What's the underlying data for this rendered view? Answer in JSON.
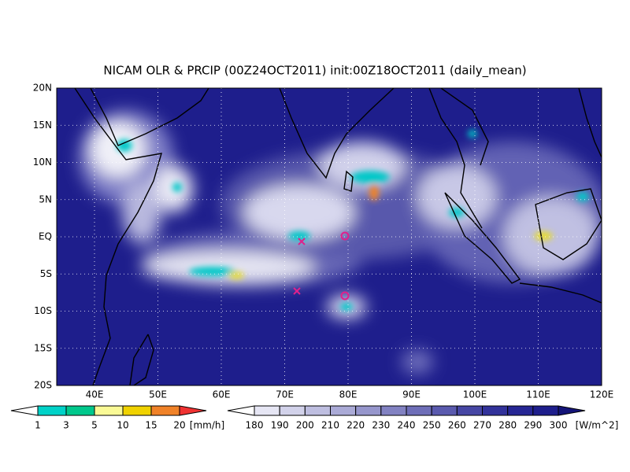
{
  "title": "NICAM OLR & PRCIP (00Z24OCT2011) init:00Z18OCT2011 (daily_mean)",
  "map": {
    "lat_labels": [
      "20N",
      "15N",
      "10N",
      "5N",
      "EQ",
      "5S",
      "10S",
      "15S",
      "20S"
    ],
    "lon_labels": [
      "40E",
      "50E",
      "60E",
      "70E",
      "80E",
      "90E",
      "100E",
      "110E",
      "120E"
    ]
  },
  "precip_colorbar": {
    "labels": [
      1,
      3,
      5,
      10,
      15,
      20
    ],
    "unit": "[mm/h]",
    "colors": [
      "#ffffff",
      "#00d2c8",
      "#00c88c",
      "#fafa96",
      "#f0d200",
      "#f08228",
      "#f03232"
    ]
  },
  "olr_colorbar": {
    "labels": [
      180,
      190,
      200,
      210,
      220,
      230,
      240,
      250,
      260,
      270,
      280,
      290,
      300
    ],
    "unit": "[W/m^2]",
    "colors": [
      "#ffffff",
      "#e6e6f4",
      "#d2d2ea",
      "#bebee0",
      "#aaaad6",
      "#9696cc",
      "#8282c2",
      "#6e6eb8",
      "#5a5aae",
      "#4646a4",
      "#32329a",
      "#262694",
      "#1e1e8c",
      "#141478"
    ]
  }
}
